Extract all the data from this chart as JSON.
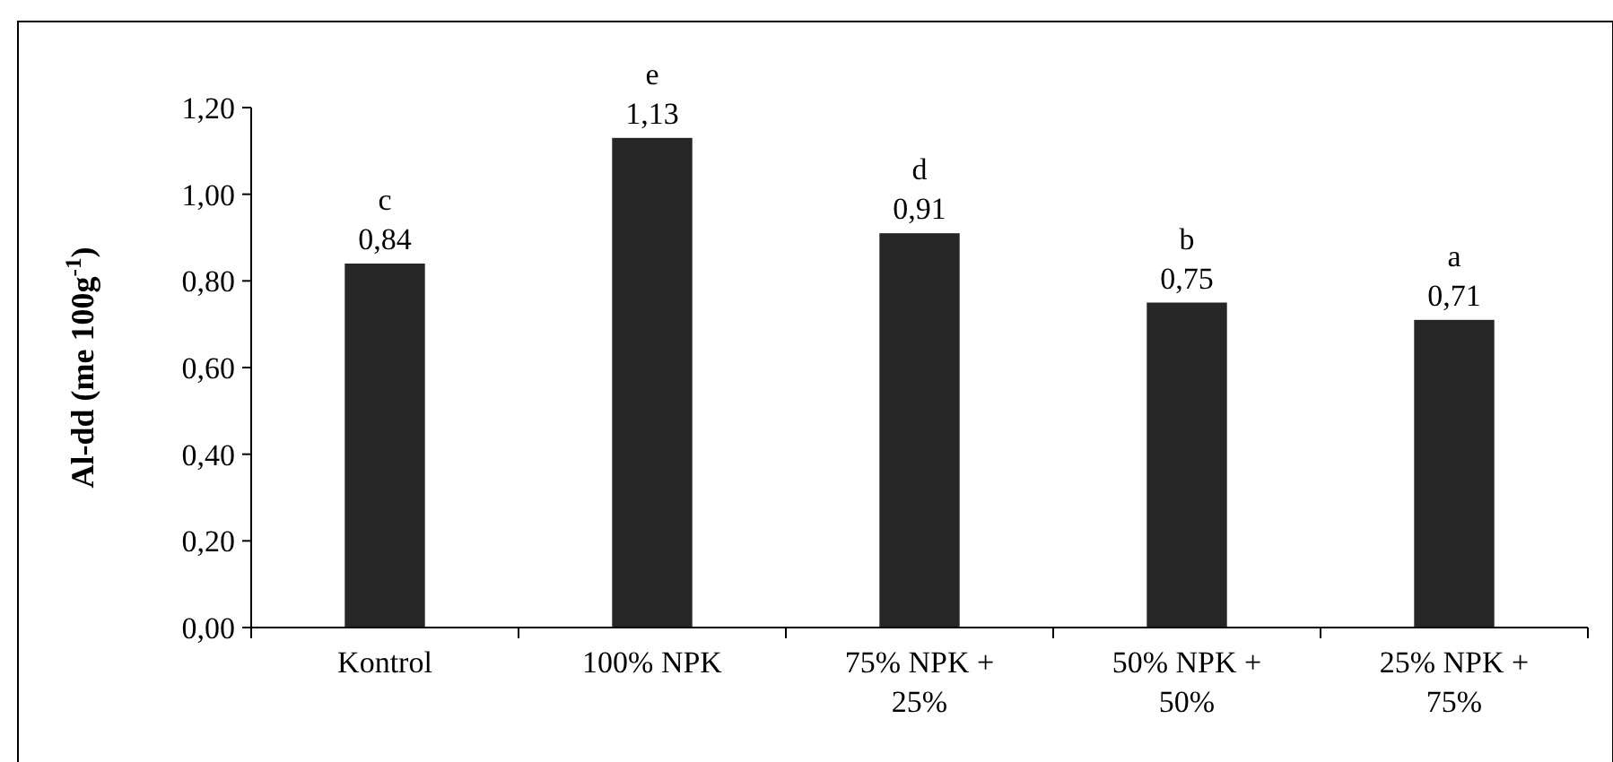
{
  "chart_data": {
    "type": "bar",
    "ylabel": "Al-dd (me 100g$^{-1}$)",
    "categories": [
      "Kontrol",
      "100% NPK",
      "75% NPK + 25%",
      "50% NPK + 50%",
      "25% NPK + 75%"
    ],
    "values": [
      0.84,
      1.13,
      0.91,
      0.75,
      0.71
    ],
    "color": "#262626",
    "value_labels": [
      "0,84",
      "1,13",
      "0,91",
      "0,75",
      "0,71"
    ],
    "annotations": [
      {
        "text": "c",
        "x": "Kontrol",
        "y": 0.84
      },
      {
        "text": "e",
        "x": "100% NPK",
        "y": 1.13
      },
      {
        "text": "d",
        "x": "75% NPK + 25%",
        "y": 0.91
      },
      {
        "text": "b",
        "x": "50% NPK + 50%",
        "y": 0.75
      },
      {
        "text": "a",
        "x": "25% NPK + 75%",
        "y": 0.71
      }
    ],
    "ylim": [
      0,
      1.2
    ],
    "yticks": [
      {
        "value": 0,
        "label": "0,00"
      },
      {
        "value": 0.2,
        "label": "0,20"
      },
      {
        "value": 0.4,
        "label": "0,40"
      },
      {
        "value": 0.6,
        "label": "0,60"
      },
      {
        "value": 0.8,
        "label": "0,80"
      },
      {
        "value": 1,
        "label": "1,00"
      },
      {
        "value": 1.2,
        "label": "1,20"
      }
    ],
    "grid": false
  }
}
